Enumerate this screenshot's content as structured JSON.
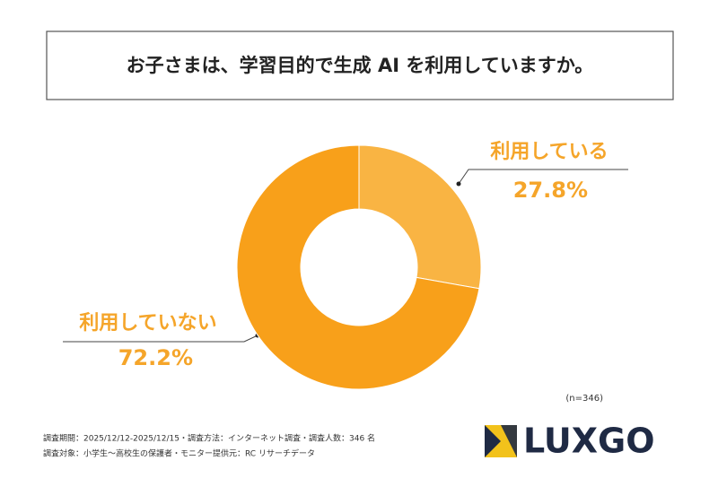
{
  "chart_data": {
    "type": "donut",
    "title": "お子さまは、学習目的で生成 AI を利用していますか。",
    "categories": [
      "利用している",
      "利用していない"
    ],
    "values": [
      27.8,
      72.2
    ],
    "value_labels": [
      "27.8%",
      "72.2%"
    ],
    "colors": [
      "#f9b443",
      "#f8a01a"
    ],
    "label_color": "#f5a52a",
    "note": "(n=346)"
  },
  "footnotes": [
    "調査期間：2025/12/12-2025/12/15・調査方法：インターネット調査・調査人数：346 名",
    "調査対象：小学生～高校生の保護者・モニター提供元：RC リサーチデータ"
  ],
  "logo": "LUXGO"
}
